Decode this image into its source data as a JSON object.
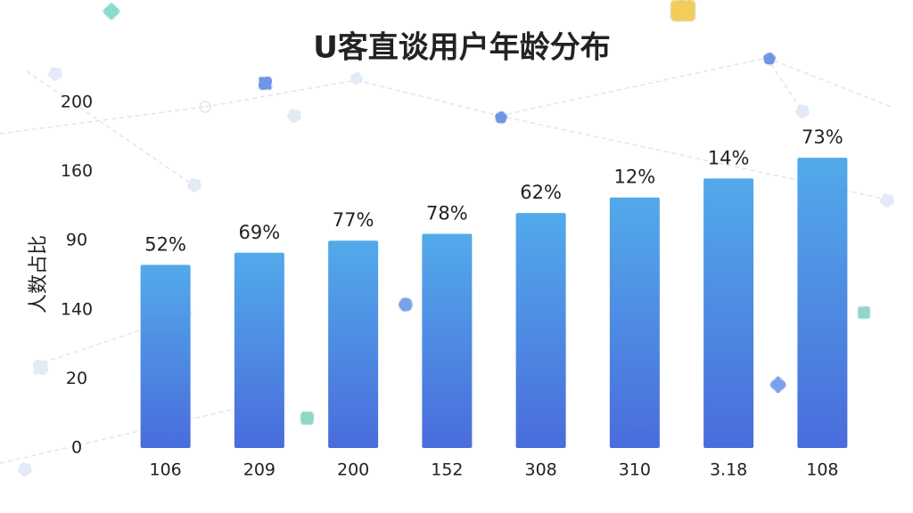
{
  "chart_data": {
    "type": "bar",
    "title": "U客直谈用户年龄分布",
    "y_label": "人数占比",
    "categories": [
      "106",
      "209",
      "200",
      "152",
      "308",
      "310",
      "3.18",
      "108"
    ],
    "values": [
      106,
      113,
      120,
      124,
      136,
      145,
      156,
      168
    ],
    "bar_labels": [
      "52%",
      "69%",
      "77%",
      "78%",
      "62%",
      "12%",
      "14%",
      "73%"
    ],
    "color": "#4a8fe6",
    "ylim": [
      0,
      200
    ],
    "yticks": [
      0,
      {
        "value": 40,
        "label": "20"
      },
      {
        "value": 80,
        "label": "140"
      },
      {
        "value": 120,
        "label": "90"
      },
      160,
      200
    ],
    "grid": false
  }
}
